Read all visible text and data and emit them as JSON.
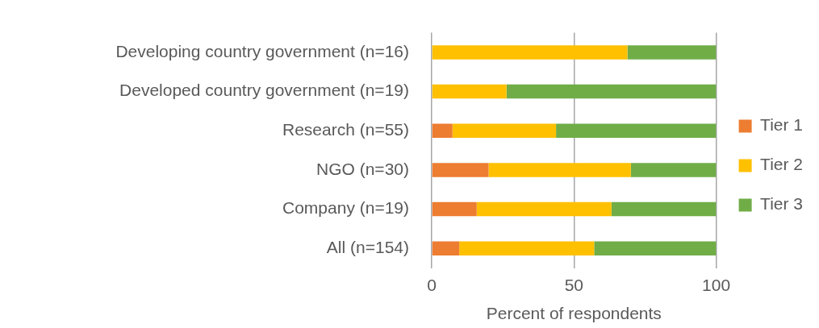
{
  "chart_data": {
    "type": "bar",
    "orientation": "horizontal",
    "stacked": true,
    "xlabel": "Percent of respondents",
    "categories": [
      "Developing country government (n=16)",
      "Developed country government (n=19)",
      "Research (n=55)",
      "NGO (n=30)",
      "Company (n=19)",
      "All (n=154)"
    ],
    "series": [
      {
        "name": "Tier 1",
        "color": "#ed7d31",
        "values": [
          0,
          0,
          7.3,
          20,
          15.8,
          9.7
        ]
      },
      {
        "name": "Tier 2",
        "color": "#ffc000",
        "values": [
          68.8,
          26.3,
          36.4,
          50,
          47.4,
          47.4
        ]
      },
      {
        "name": "Tier 3",
        "color": "#70ad47",
        "values": [
          31.2,
          73.7,
          56.3,
          30,
          36.8,
          42.9
        ]
      }
    ],
    "xlim": [
      0,
      100
    ],
    "xticks": [
      0,
      50,
      100
    ],
    "grid": "x",
    "legend": "right"
  }
}
